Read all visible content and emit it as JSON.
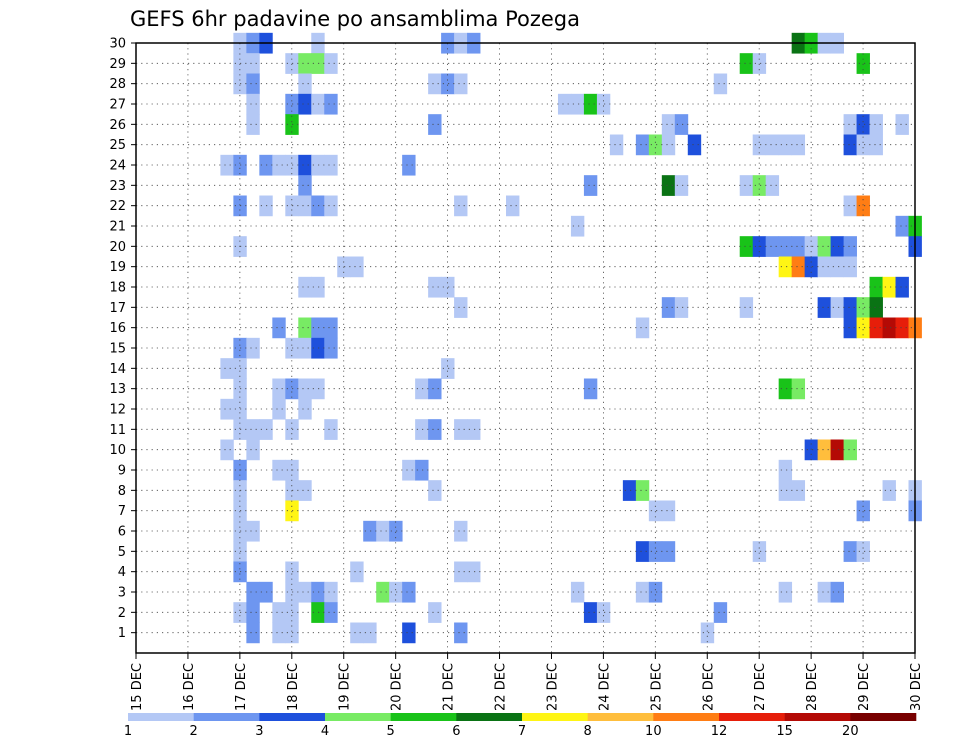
{
  "chart_data": {
    "type": "heatmap",
    "title": "GEFS 6hr padavine po ansamblima Pozega",
    "xlabel": "",
    "ylabel": "",
    "x_tick_labels": [
      "15 DEC",
      "16 DEC",
      "17 DEC",
      "18 DEC",
      "19 DEC",
      "20 DEC",
      "21 DEC",
      "22 DEC",
      "23 DEC",
      "24 DEC",
      "25 DEC",
      "26 DEC",
      "27 DEC",
      "28 DEC",
      "29 DEC",
      "30 DEC"
    ],
    "x_range_days": [
      15,
      30
    ],
    "y_tick_labels": [
      "1",
      "2",
      "3",
      "4",
      "5",
      "6",
      "7",
      "8",
      "9",
      "10",
      "11",
      "12",
      "13",
      "14",
      "15",
      "16",
      "17",
      "18",
      "19",
      "20",
      "21",
      "22",
      "23",
      "24",
      "25",
      "26",
      "27",
      "28",
      "29",
      "30"
    ],
    "y_range": [
      0,
      30
    ],
    "grid": true,
    "legend": "bottom",
    "colorbar": {
      "labels": [
        "1",
        "2",
        "3",
        "4",
        "5",
        "6",
        "7",
        "8",
        "10",
        "12",
        "15",
        "20"
      ],
      "colors": [
        "#b4c8f5",
        "#6e96f0",
        "#1e50dc",
        "#78eb64",
        "#19c319",
        "#0a7314",
        "#fff514",
        "#ffbe3c",
        "#ff7d14",
        "#e61e0a",
        "#b40a05",
        "#780000"
      ]
    },
    "cells": [
      [
        17.0,
        30,
        1
      ],
      [
        17.25,
        30,
        2
      ],
      [
        17.5,
        30,
        3
      ],
      [
        18.5,
        30,
        1
      ],
      [
        21.0,
        30,
        2
      ],
      [
        21.25,
        30,
        1
      ],
      [
        21.5,
        30,
        2
      ],
      [
        27.75,
        30,
        6
      ],
      [
        28.0,
        30,
        5
      ],
      [
        28.25,
        30,
        1
      ],
      [
        28.5,
        30,
        1
      ],
      [
        17.0,
        29,
        1
      ],
      [
        17.25,
        29,
        1
      ],
      [
        18.0,
        29,
        1
      ],
      [
        18.25,
        29,
        4
      ],
      [
        18.5,
        29,
        4
      ],
      [
        18.75,
        29,
        1
      ],
      [
        26.75,
        29,
        5
      ],
      [
        27.0,
        29,
        1
      ],
      [
        29.0,
        29,
        5
      ],
      [
        17.0,
        28,
        1
      ],
      [
        17.25,
        28,
        2
      ],
      [
        18.25,
        28,
        1
      ],
      [
        20.75,
        28,
        1
      ],
      [
        21.0,
        28,
        2
      ],
      [
        21.25,
        28,
        1
      ],
      [
        26.25,
        28,
        1
      ],
      [
        17.25,
        27,
        1
      ],
      [
        18.0,
        27,
        2
      ],
      [
        18.25,
        27,
        3
      ],
      [
        18.5,
        27,
        1
      ],
      [
        18.75,
        27,
        2
      ],
      [
        23.25,
        27,
        1
      ],
      [
        23.5,
        27,
        1
      ],
      [
        23.75,
        27,
        5
      ],
      [
        24.0,
        27,
        1
      ],
      [
        17.25,
        26,
        1
      ],
      [
        18.0,
        26,
        5
      ],
      [
        20.75,
        26,
        2
      ],
      [
        25.25,
        26,
        1
      ],
      [
        25.5,
        26,
        2
      ],
      [
        28.75,
        26,
        1
      ],
      [
        29.0,
        26,
        3
      ],
      [
        29.25,
        26,
        1
      ],
      [
        29.75,
        26,
        1
      ],
      [
        24.25,
        25,
        1
      ],
      [
        24.75,
        25,
        2
      ],
      [
        25.0,
        25,
        4
      ],
      [
        25.25,
        25,
        1
      ],
      [
        25.75,
        25,
        3
      ],
      [
        27.0,
        25,
        1
      ],
      [
        27.25,
        25,
        1
      ],
      [
        27.5,
        25,
        1
      ],
      [
        27.75,
        25,
        1
      ],
      [
        28.75,
        25,
        3
      ],
      [
        29.0,
        25,
        1
      ],
      [
        29.25,
        25,
        1
      ],
      [
        16.75,
        24,
        1
      ],
      [
        17.0,
        24,
        2
      ],
      [
        17.5,
        24,
        2
      ],
      [
        17.75,
        24,
        1
      ],
      [
        18.0,
        24,
        1
      ],
      [
        18.25,
        24,
        3
      ],
      [
        18.5,
        24,
        1
      ],
      [
        18.75,
        24,
        1
      ],
      [
        20.25,
        24,
        2
      ],
      [
        18.25,
        23,
        2
      ],
      [
        23.75,
        23,
        2
      ],
      [
        25.25,
        23,
        6
      ],
      [
        25.5,
        23,
        1
      ],
      [
        26.75,
        23,
        1
      ],
      [
        27.0,
        23,
        4
      ],
      [
        27.25,
        23,
        1
      ],
      [
        17.0,
        22,
        2
      ],
      [
        17.5,
        22,
        1
      ],
      [
        18.0,
        22,
        1
      ],
      [
        18.25,
        22,
        1
      ],
      [
        18.5,
        22,
        2
      ],
      [
        18.75,
        22,
        1
      ],
      [
        21.25,
        22,
        1
      ],
      [
        22.25,
        22,
        1
      ],
      [
        28.75,
        22,
        1
      ],
      [
        29.0,
        22,
        9
      ],
      [
        23.5,
        21,
        1
      ],
      [
        29.75,
        21,
        2
      ],
      [
        30.0,
        21,
        5
      ],
      [
        17.0,
        20,
        1
      ],
      [
        26.75,
        20,
        5
      ],
      [
        27.0,
        20,
        3
      ],
      [
        27.25,
        20,
        2
      ],
      [
        27.5,
        20,
        2
      ],
      [
        27.75,
        20,
        2
      ],
      [
        28.0,
        20,
        1
      ],
      [
        28.25,
        20,
        4
      ],
      [
        28.5,
        20,
        3
      ],
      [
        28.75,
        20,
        2
      ],
      [
        30.0,
        20,
        3
      ],
      [
        19.0,
        19,
        1
      ],
      [
        19.25,
        19,
        1
      ],
      [
        27.5,
        19,
        7
      ],
      [
        27.75,
        19,
        9
      ],
      [
        28.0,
        19,
        3
      ],
      [
        28.25,
        19,
        1
      ],
      [
        28.5,
        19,
        1
      ],
      [
        28.75,
        19,
        1
      ],
      [
        18.25,
        18,
        1
      ],
      [
        18.5,
        18,
        1
      ],
      [
        20.75,
        18,
        1
      ],
      [
        21.0,
        18,
        1
      ],
      [
        29.25,
        18,
        5
      ],
      [
        29.5,
        18,
        7
      ],
      [
        29.75,
        18,
        3
      ],
      [
        21.25,
        17,
        1
      ],
      [
        25.25,
        17,
        2
      ],
      [
        25.5,
        17,
        1
      ],
      [
        26.75,
        17,
        1
      ],
      [
        28.25,
        17,
        3
      ],
      [
        28.5,
        17,
        1
      ],
      [
        28.75,
        17,
        3
      ],
      [
        29.0,
        17,
        4
      ],
      [
        29.25,
        17,
        6
      ],
      [
        17.75,
        16,
        2
      ],
      [
        18.25,
        16,
        4
      ],
      [
        18.5,
        16,
        2
      ],
      [
        18.75,
        16,
        2
      ],
      [
        24.75,
        16,
        1
      ],
      [
        28.75,
        16,
        3
      ],
      [
        29.0,
        16,
        7
      ],
      [
        29.25,
        16,
        10
      ],
      [
        29.5,
        16,
        11
      ],
      [
        29.75,
        16,
        10
      ],
      [
        30.0,
        16,
        9
      ],
      [
        17.0,
        15,
        2
      ],
      [
        17.25,
        15,
        1
      ],
      [
        18.0,
        15,
        1
      ],
      [
        18.25,
        15,
        1
      ],
      [
        18.5,
        15,
        3
      ],
      [
        18.75,
        15,
        2
      ],
      [
        16.75,
        14,
        1
      ],
      [
        17.0,
        14,
        1
      ],
      [
        21.0,
        14,
        1
      ],
      [
        17.0,
        13,
        1
      ],
      [
        17.75,
        13,
        1
      ],
      [
        18.0,
        13,
        2
      ],
      [
        18.25,
        13,
        1
      ],
      [
        18.5,
        13,
        1
      ],
      [
        20.5,
        13,
        1
      ],
      [
        20.75,
        13,
        2
      ],
      [
        23.75,
        13,
        2
      ],
      [
        27.5,
        13,
        5
      ],
      [
        27.75,
        13,
        4
      ],
      [
        16.75,
        12,
        1
      ],
      [
        17.0,
        12,
        1
      ],
      [
        17.75,
        12,
        1
      ],
      [
        18.25,
        12,
        1
      ],
      [
        17.0,
        11,
        1
      ],
      [
        17.25,
        11,
        1
      ],
      [
        17.5,
        11,
        1
      ],
      [
        18.0,
        11,
        1
      ],
      [
        18.75,
        11,
        1
      ],
      [
        20.5,
        11,
        1
      ],
      [
        20.75,
        11,
        2
      ],
      [
        21.25,
        11,
        1
      ],
      [
        21.5,
        11,
        1
      ],
      [
        16.75,
        10,
        1
      ],
      [
        17.25,
        10,
        1
      ],
      [
        28.0,
        10,
        3
      ],
      [
        28.25,
        10,
        8
      ],
      [
        28.5,
        10,
        11
      ],
      [
        28.75,
        10,
        4
      ],
      [
        17.0,
        9,
        2
      ],
      [
        17.75,
        9,
        1
      ],
      [
        18.0,
        9,
        1
      ],
      [
        20.25,
        9,
        1
      ],
      [
        20.5,
        9,
        2
      ],
      [
        27.5,
        9,
        1
      ],
      [
        17.0,
        8,
        1
      ],
      [
        18.0,
        8,
        1
      ],
      [
        18.25,
        8,
        1
      ],
      [
        20.75,
        8,
        1
      ],
      [
        24.5,
        8,
        3
      ],
      [
        24.75,
        8,
        4
      ],
      [
        27.5,
        8,
        1
      ],
      [
        27.75,
        8,
        1
      ],
      [
        29.5,
        8,
        1
      ],
      [
        30.0,
        8,
        1
      ],
      [
        17.0,
        7,
        1
      ],
      [
        18.0,
        7,
        7
      ],
      [
        25.0,
        7,
        1
      ],
      [
        25.25,
        7,
        1
      ],
      [
        29.0,
        7,
        2
      ],
      [
        30.0,
        7,
        2
      ],
      [
        17.0,
        6,
        1
      ],
      [
        17.25,
        6,
        1
      ],
      [
        19.5,
        6,
        2
      ],
      [
        19.75,
        6,
        1
      ],
      [
        20.0,
        6,
        2
      ],
      [
        21.25,
        6,
        1
      ],
      [
        17.0,
        5,
        1
      ],
      [
        24.75,
        5,
        3
      ],
      [
        25.0,
        5,
        2
      ],
      [
        25.25,
        5,
        2
      ],
      [
        27.0,
        5,
        1
      ],
      [
        28.75,
        5,
        2
      ],
      [
        29.0,
        5,
        1
      ],
      [
        17.0,
        4,
        2
      ],
      [
        18.0,
        4,
        1
      ],
      [
        19.25,
        4,
        1
      ],
      [
        21.25,
        4,
        1
      ],
      [
        21.5,
        4,
        1
      ],
      [
        17.25,
        3,
        2
      ],
      [
        17.5,
        3,
        2
      ],
      [
        18.0,
        3,
        1
      ],
      [
        18.25,
        3,
        1
      ],
      [
        18.5,
        3,
        2
      ],
      [
        18.75,
        3,
        1
      ],
      [
        19.75,
        3,
        4
      ],
      [
        20.0,
        3,
        1
      ],
      [
        20.25,
        3,
        2
      ],
      [
        23.5,
        3,
        1
      ],
      [
        24.75,
        3,
        1
      ],
      [
        25.0,
        3,
        2
      ],
      [
        27.5,
        3,
        1
      ],
      [
        28.25,
        3,
        1
      ],
      [
        28.5,
        3,
        2
      ],
      [
        17.0,
        2,
        1
      ],
      [
        17.25,
        2,
        2
      ],
      [
        17.75,
        2,
        1
      ],
      [
        18.0,
        2,
        1
      ],
      [
        18.5,
        2,
        5
      ],
      [
        18.75,
        2,
        2
      ],
      [
        20.75,
        2,
        1
      ],
      [
        23.75,
        2,
        3
      ],
      [
        24.0,
        2,
        1
      ],
      [
        26.25,
        2,
        2
      ],
      [
        17.25,
        1,
        2
      ],
      [
        17.75,
        1,
        1
      ],
      [
        18.0,
        1,
        1
      ],
      [
        19.25,
        1,
        1
      ],
      [
        19.5,
        1,
        1
      ],
      [
        20.25,
        1,
        3
      ],
      [
        21.25,
        1,
        2
      ],
      [
        26.0,
        1,
        1
      ]
    ]
  }
}
